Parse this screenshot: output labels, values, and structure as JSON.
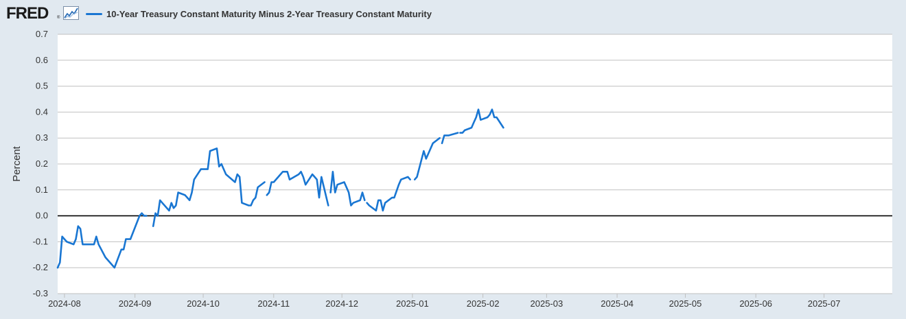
{
  "brand": {
    "logo_text": "FRED",
    "registered_mark": "®",
    "icon": "line-chart-icon"
  },
  "colors": {
    "series": "#1976d2",
    "background": "#e1e9f0",
    "plot_background": "#ffffff",
    "grid": "#c0c0c0",
    "zero_line": "#000000"
  },
  "chart_data": {
    "type": "line",
    "title": "",
    "xlabel": "",
    "ylabel": "Percent",
    "ylim": [
      -0.3,
      0.7
    ],
    "yticks": [
      -0.3,
      -0.2,
      -0.1,
      0.0,
      0.1,
      0.2,
      0.3,
      0.4,
      0.5,
      0.6,
      0.7
    ],
    "ytick_labels": [
      "-0.3",
      "-0.2",
      "-0.1",
      "0.0",
      "0.1",
      "0.2",
      "0.3",
      "0.4",
      "0.5",
      "0.6",
      "0.7"
    ],
    "xlim": [
      "2024-07-29",
      "2025-07-31"
    ],
    "xticks": [
      "2024-08-01",
      "2024-09-01",
      "2024-10-01",
      "2024-11-01",
      "2024-12-01",
      "2025-01-01",
      "2025-02-01",
      "2025-03-01",
      "2025-04-01",
      "2025-05-01",
      "2025-06-01",
      "2025-07-01"
    ],
    "xtick_labels": [
      "2024-08",
      "2024-09",
      "2024-10",
      "2024-11",
      "2024-12",
      "2025-01",
      "2025-02",
      "2025-03",
      "2025-04",
      "2025-05",
      "2025-06",
      "2025-07"
    ],
    "grid": true,
    "legend_position": "top-left",
    "series": [
      {
        "name": "10-Year Treasury Constant Maturity Minus 2-Year Treasury Constant Maturity",
        "segments": [
          [
            [
              "2024-07-29",
              -0.2
            ],
            [
              "2024-07-30",
              -0.18
            ],
            [
              "2024-07-31",
              -0.08
            ],
            [
              "2024-08-01",
              -0.09
            ],
            [
              "2024-08-02",
              -0.1
            ],
            [
              "2024-08-05",
              -0.11
            ],
            [
              "2024-08-06",
              -0.09
            ],
            [
              "2024-08-07",
              -0.04
            ],
            [
              "2024-08-08",
              -0.05
            ],
            [
              "2024-08-09",
              -0.11
            ],
            [
              "2024-08-12",
              -0.11
            ],
            [
              "2024-08-13",
              -0.11
            ],
            [
              "2024-08-14",
              -0.11
            ],
            [
              "2024-08-15",
              -0.08
            ],
            [
              "2024-08-16",
              -0.11
            ],
            [
              "2024-08-19",
              -0.16
            ],
            [
              "2024-08-20",
              -0.17
            ],
            [
              "2024-08-21",
              -0.18
            ],
            [
              "2024-08-22",
              -0.19
            ],
            [
              "2024-08-23",
              -0.2
            ],
            [
              "2024-08-26",
              -0.13
            ],
            [
              "2024-08-27",
              -0.13
            ],
            [
              "2024-08-28",
              -0.09
            ],
            [
              "2024-08-29",
              -0.09
            ],
            [
              "2024-08-30",
              -0.09
            ],
            [
              "2024-09-03",
              0.0
            ],
            [
              "2024-09-04",
              0.01
            ],
            [
              "2024-09-05",
              0.0
            ],
            [
              "2024-09-06",
              0.0
            ]
          ],
          [
            [
              "2024-09-09",
              -0.04
            ],
            [
              "2024-09-10",
              0.01
            ],
            [
              "2024-09-11",
              0.0
            ],
            [
              "2024-09-12",
              0.06
            ],
            [
              "2024-09-13",
              0.05
            ],
            [
              "2024-09-16",
              0.02
            ],
            [
              "2024-09-17",
              0.05
            ],
            [
              "2024-09-18",
              0.03
            ],
            [
              "2024-09-19",
              0.04
            ],
            [
              "2024-09-20",
              0.09
            ],
            [
              "2024-09-23",
              0.08
            ],
            [
              "2024-09-24",
              0.07
            ],
            [
              "2024-09-25",
              0.06
            ],
            [
              "2024-09-26",
              0.09
            ],
            [
              "2024-09-27",
              0.14
            ],
            [
              "2024-09-30",
              0.18
            ],
            [
              "2024-10-01",
              0.18
            ],
            [
              "2024-10-02",
              0.18
            ],
            [
              "2024-10-03",
              0.18
            ],
            [
              "2024-10-04",
              0.25
            ],
            [
              "2024-10-07",
              0.26
            ],
            [
              "2024-10-08",
              0.19
            ],
            [
              "2024-10-09",
              0.2
            ],
            [
              "2024-10-10",
              0.18
            ],
            [
              "2024-10-11",
              0.16
            ],
            [
              "2024-10-15",
              0.13
            ],
            [
              "2024-10-16",
              0.16
            ],
            [
              "2024-10-17",
              0.15
            ],
            [
              "2024-10-18",
              0.05
            ],
            [
              "2024-10-21",
              0.04
            ],
            [
              "2024-10-22",
              0.04
            ],
            [
              "2024-10-23",
              0.06
            ],
            [
              "2024-10-24",
              0.07
            ],
            [
              "2024-10-25",
              0.11
            ],
            [
              "2024-10-28",
              0.13
            ]
          ],
          [
            [
              "2024-10-29",
              0.08
            ],
            [
              "2024-10-30",
              0.09
            ],
            [
              "2024-10-31",
              0.13
            ],
            [
              "2024-11-01",
              0.13
            ],
            [
              "2024-11-04",
              0.16
            ],
            [
              "2024-11-05",
              0.17
            ],
            [
              "2024-11-06",
              0.17
            ],
            [
              "2024-11-07",
              0.17
            ],
            [
              "2024-11-08",
              0.14
            ],
            [
              "2024-11-12",
              0.16
            ],
            [
              "2024-11-13",
              0.17
            ],
            [
              "2024-11-14",
              0.15
            ],
            [
              "2024-11-15",
              0.12
            ],
            [
              "2024-11-18",
              0.16
            ],
            [
              "2024-11-19",
              0.15
            ],
            [
              "2024-11-20",
              0.14
            ],
            [
              "2024-11-21",
              0.07
            ],
            [
              "2024-11-22",
              0.15
            ],
            [
              "2024-11-25",
              0.04
            ]
          ],
          [
            [
              "2024-11-26",
              0.09
            ],
            [
              "2024-11-27",
              0.17
            ],
            [
              "2024-11-28",
              0.09
            ],
            [
              "2024-11-29",
              0.12
            ],
            [
              "2024-12-02",
              0.13
            ],
            [
              "2024-12-03",
              0.11
            ],
            [
              "2024-12-04",
              0.09
            ],
            [
              "2024-12-05",
              0.04
            ],
            [
              "2024-12-06",
              0.05
            ],
            [
              "2024-12-09",
              0.06
            ],
            [
              "2024-12-10",
              0.09
            ],
            [
              "2024-12-11",
              0.06
            ]
          ],
          [
            [
              "2024-12-12",
              0.05
            ],
            [
              "2024-12-13",
              0.04
            ],
            [
              "2024-12-16",
              0.02
            ],
            [
              "2024-12-17",
              0.06
            ],
            [
              "2024-12-18",
              0.06
            ],
            [
              "2024-12-19",
              0.02
            ],
            [
              "2024-12-20",
              0.05
            ],
            [
              "2024-12-23",
              0.07
            ],
            [
              "2024-12-24",
              0.07
            ],
            [
              "2024-12-26",
              0.12
            ],
            [
              "2024-12-27",
              0.14
            ],
            [
              "2024-12-30",
              0.15
            ],
            [
              "2024-12-31",
              0.14
            ]
          ],
          [
            [
              "2025-01-02",
              0.14
            ],
            [
              "2025-01-03",
              0.15
            ],
            [
              "2025-01-06",
              0.25
            ],
            [
              "2025-01-07",
              0.22
            ],
            [
              "2025-01-08",
              0.24
            ],
            [
              "2025-01-10",
              0.28
            ],
            [
              "2025-01-13",
              0.3
            ]
          ],
          [
            [
              "2025-01-14",
              0.28
            ],
            [
              "2025-01-15",
              0.31
            ],
            [
              "2025-01-16",
              0.31
            ],
            [
              "2025-01-17",
              0.31
            ],
            [
              "2025-01-21",
              0.32
            ]
          ],
          [
            [
              "2025-01-22",
              0.32
            ],
            [
              "2025-01-23",
              0.32
            ],
            [
              "2025-01-24",
              0.33
            ],
            [
              "2025-01-27",
              0.34
            ],
            [
              "2025-01-28",
              0.36
            ],
            [
              "2025-01-29",
              0.38
            ],
            [
              "2025-01-30",
              0.41
            ],
            [
              "2025-01-31",
              0.37
            ],
            [
              "2025-02-03",
              0.38
            ],
            [
              "2025-02-04",
              0.39
            ],
            [
              "2025-02-05",
              0.41
            ],
            [
              "2025-02-06",
              0.38
            ],
            [
              "2025-02-07",
              0.38
            ],
            [
              "2025-02-10",
              0.34
            ]
          ]
        ]
      }
    ]
  }
}
